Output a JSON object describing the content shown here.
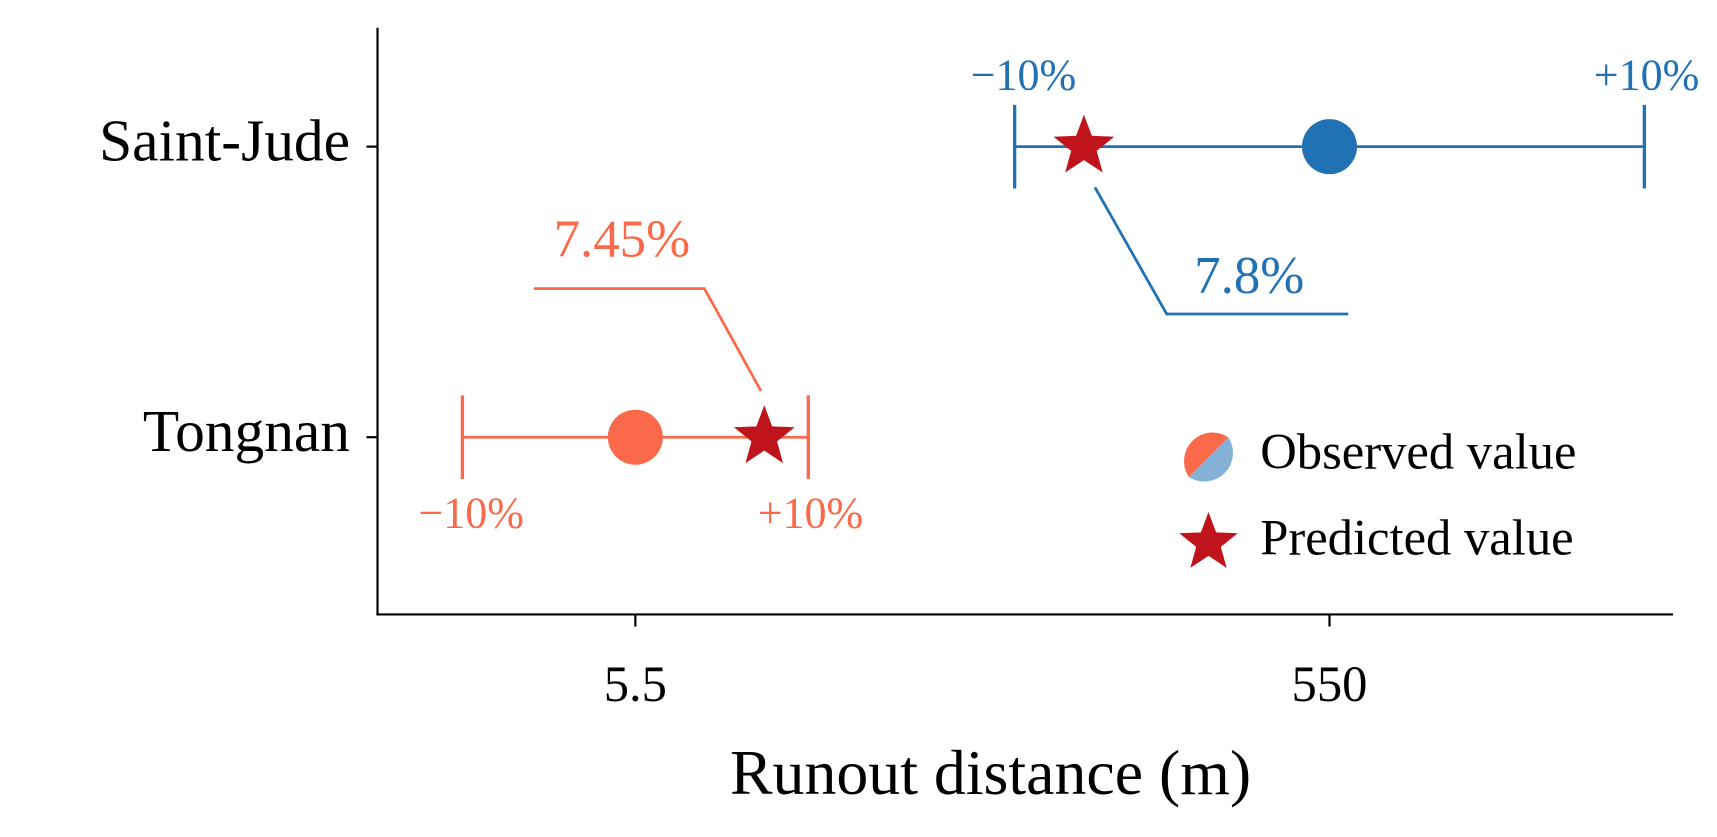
{
  "chart_data": {
    "type": "dot-range",
    "x_label": "Runout distance (m)",
    "series": [
      {
        "name": "Tongnan",
        "color": "#fa6a4a",
        "xlim": [
          4.68,
          8.8
        ],
        "xtick": 5.5,
        "observed": 5.5,
        "predicted": 5.91,
        "lower": 4.95,
        "upper": 6.05,
        "lower_label": "−10%",
        "upper_label": "+10%",
        "error_label": "7.45%"
      },
      {
        "name": "Saint-Jude",
        "color": "#2171b5",
        "xlim": [
          383.7,
          610
        ],
        "xtick": 550,
        "observed": 550,
        "predicted": 507.1,
        "lower": 495,
        "upper": 605,
        "lower_label": "−10%",
        "upper_label": "+10%",
        "error_label": "7.8%"
      }
    ],
    "predicted_color": "#c0141c",
    "legend": {
      "observed": "Observed value",
      "predicted": "Predicted value",
      "position": "lower right"
    }
  }
}
